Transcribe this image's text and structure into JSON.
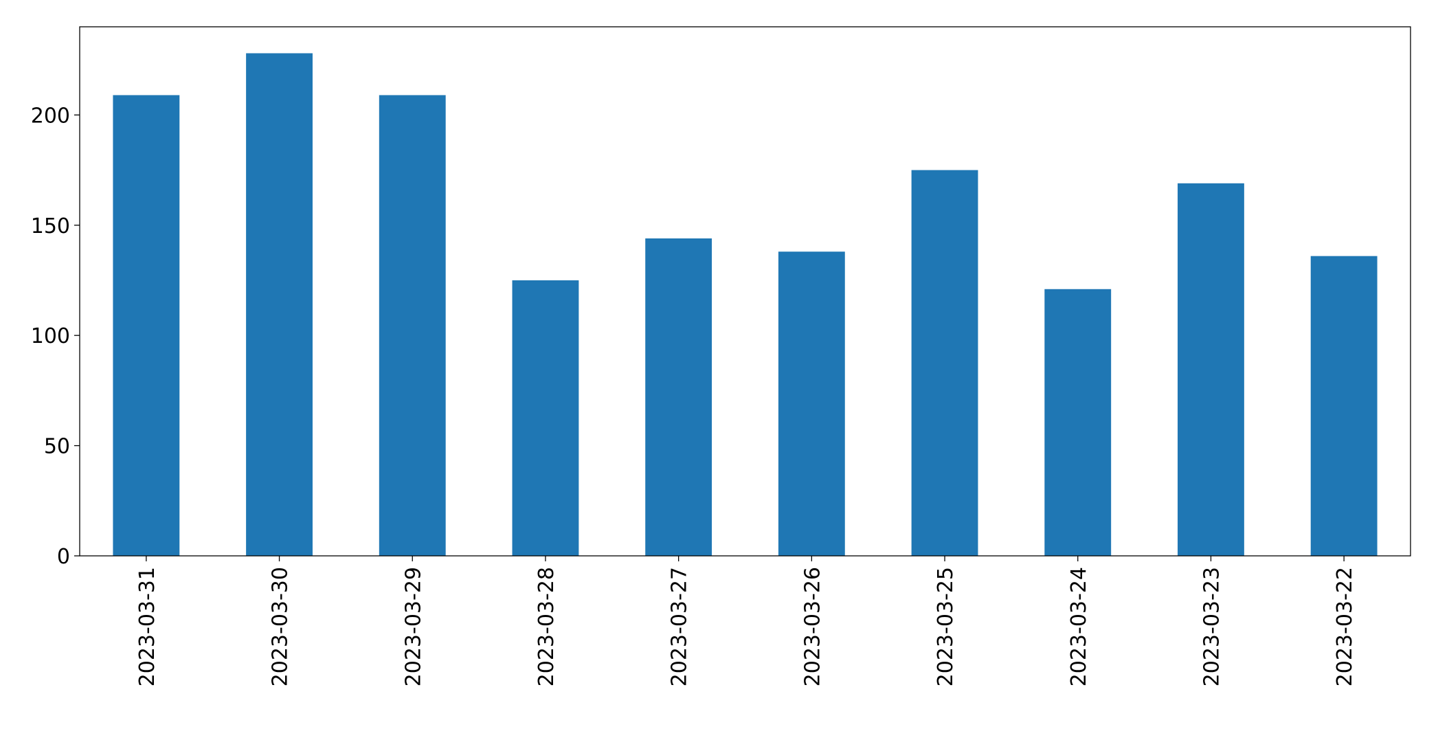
{
  "chart_data": {
    "type": "bar",
    "categories": [
      "2023-03-31",
      "2023-03-30",
      "2023-03-29",
      "2023-03-28",
      "2023-03-27",
      "2023-03-26",
      "2023-03-25",
      "2023-03-24",
      "2023-03-23",
      "2023-03-22"
    ],
    "values": [
      209,
      228,
      209,
      125,
      144,
      138,
      175,
      121,
      169,
      136
    ],
    "color": "#1f77b4",
    "ylim": [
      0,
      240
    ],
    "yticks": [
      0,
      50,
      100,
      150,
      200
    ],
    "grid": false
  }
}
